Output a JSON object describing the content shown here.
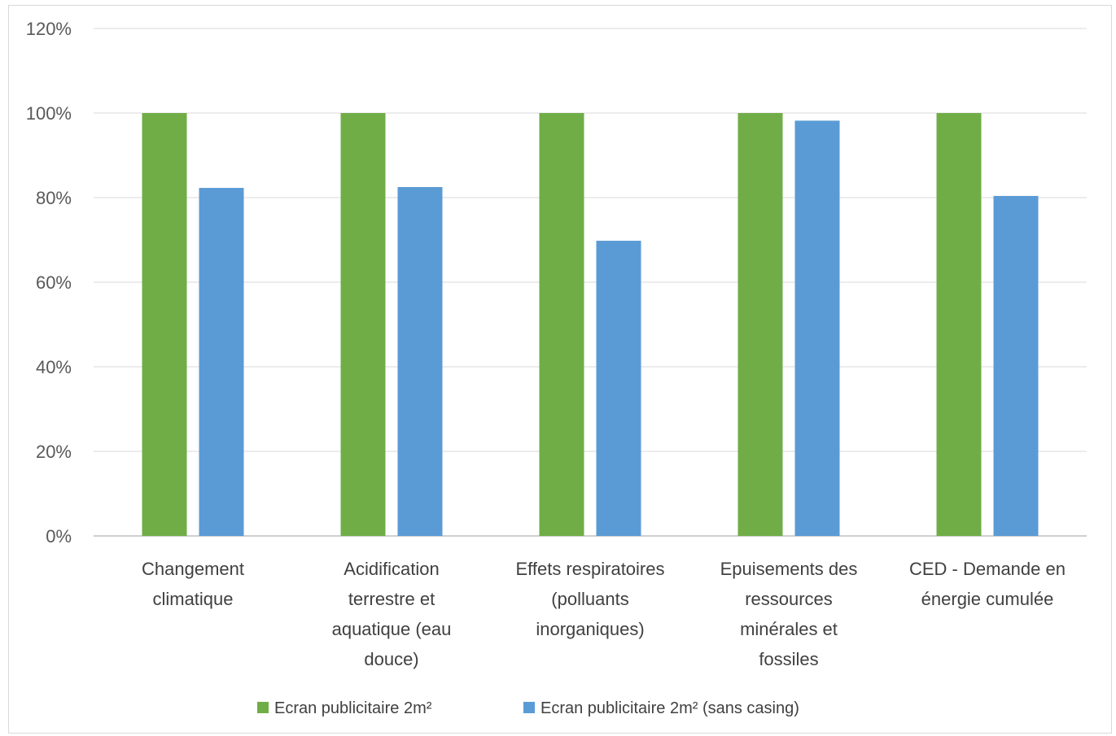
{
  "chart_data": {
    "type": "bar",
    "title": "",
    "xlabel": "",
    "ylabel": "",
    "ylim": [
      0,
      1.2
    ],
    "y_tick_values": [
      0,
      0.2,
      0.4,
      0.6,
      0.8,
      1.0,
      1.2
    ],
    "y_tick_labels": [
      "0%",
      "20%",
      "40%",
      "60%",
      "80%",
      "100%",
      "120%"
    ],
    "grid": true,
    "legend_position": "bottom",
    "categories": [
      [
        "Changement",
        "climatique"
      ],
      [
        "Acidification",
        "terrestre et",
        "aquatique (eau",
        "douce)"
      ],
      [
        "Effets respiratoires",
        "(polluants",
        "inorganiques)"
      ],
      [
        "Epuisements des",
        "ressources",
        "minérales et",
        "fossiles"
      ],
      [
        "CED - Demande en",
        "énergie cumulée"
      ]
    ],
    "series": [
      {
        "name": "Ecran publicitaire 2m²",
        "color": "#70ad47",
        "values": [
          1.0,
          1.0,
          1.0,
          1.0,
          1.0
        ]
      },
      {
        "name": "Ecran publicitaire 2m² (sans casing)",
        "color": "#5b9bd5",
        "values": [
          0.823,
          0.825,
          0.698,
          0.982,
          0.804
        ]
      }
    ]
  }
}
